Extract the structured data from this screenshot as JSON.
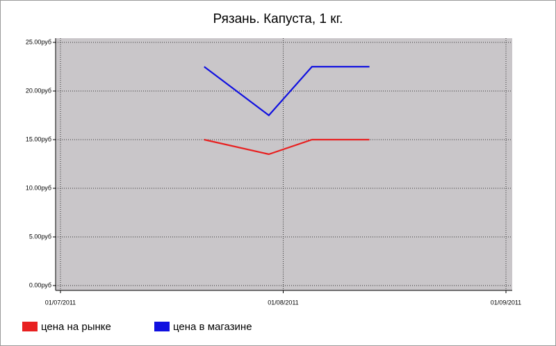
{
  "chart_data": {
    "type": "line",
    "title": "Рязань. Капуста, 1 кг.",
    "x": [
      "2011-07-21",
      "2011-07-30",
      "2011-08-05",
      "2011-08-13"
    ],
    "series": [
      {
        "name": "цена на рынке",
        "color": "#e82020",
        "values": [
          15,
          13.5,
          15,
          15
        ]
      },
      {
        "name": "цена в магазине",
        "color": "#1010e0",
        "values": [
          22.5,
          17.5,
          22.5,
          22.5
        ]
      }
    ],
    "xlim": [
      "2011-07-01",
      "2011-09-01"
    ],
    "xticks": [
      {
        "value": "2011-07-01",
        "label": "01/07/2011"
      },
      {
        "value": "2011-08-01",
        "label": "01/08/2011"
      },
      {
        "value": "2011-09-01",
        "label": "01/09/2011"
      }
    ],
    "ylim": [
      0,
      25
    ],
    "yticks": [
      {
        "value": 0,
        "label": "0.00руб"
      },
      {
        "value": 5,
        "label": "5.00руб"
      },
      {
        "value": 10,
        "label": "10.00руб"
      },
      {
        "value": 15,
        "label": "15.00руб"
      },
      {
        "value": 20,
        "label": "20.00руб"
      },
      {
        "value": 25,
        "label": "25.00руб"
      }
    ],
    "grid": true,
    "legend": "bottom-left"
  }
}
